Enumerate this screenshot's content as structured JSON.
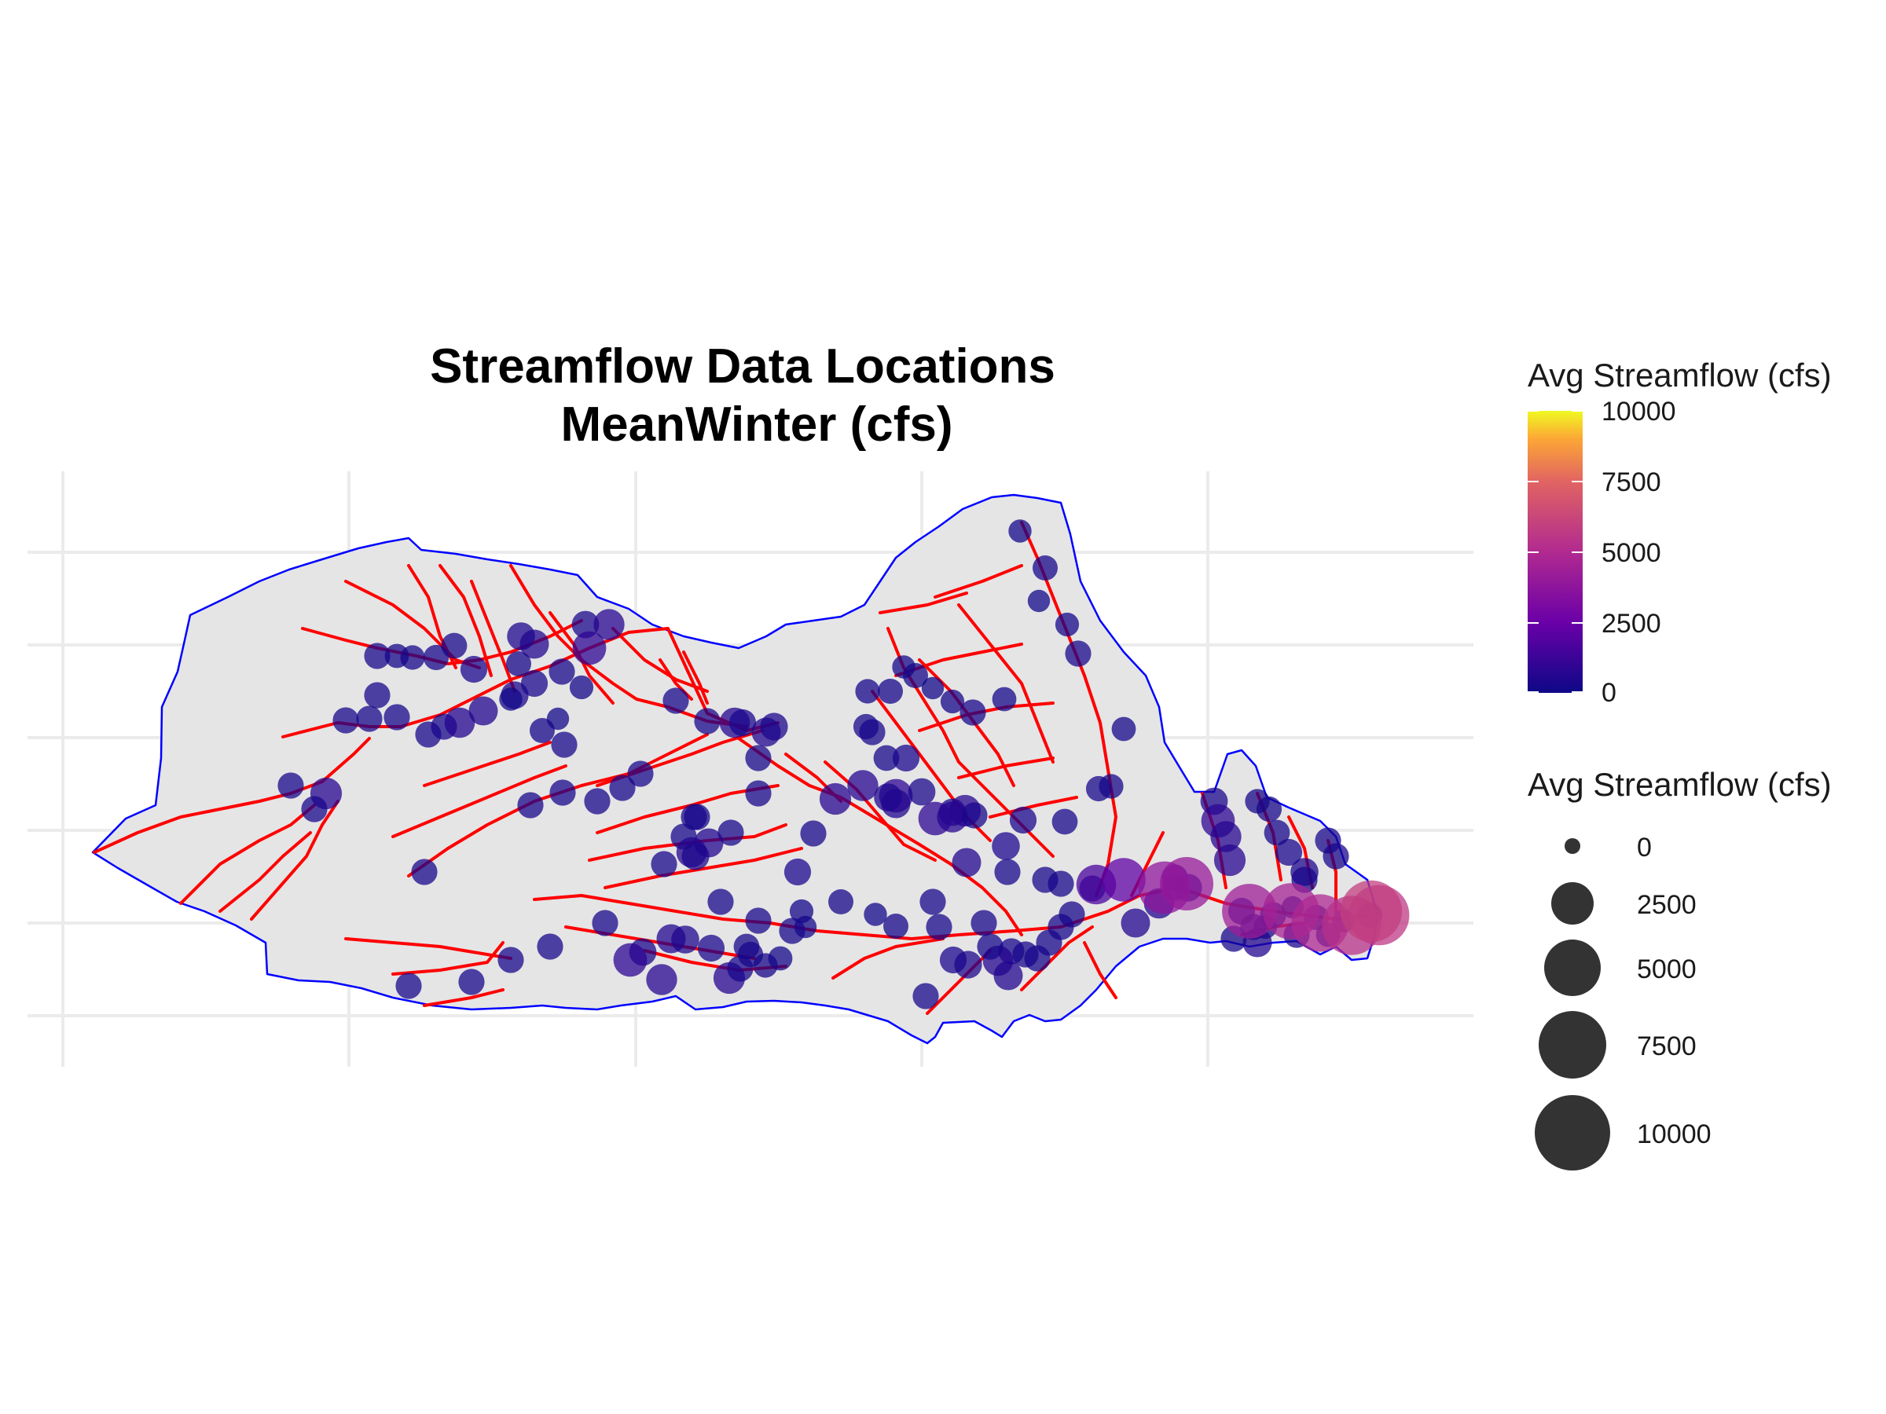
{
  "title": {
    "line1": "Streamflow Data Locations",
    "line2": "MeanWinter (cfs)"
  },
  "colors": {
    "watershed_fill": "#e5e5e5",
    "watershed_outline": "#0000ff",
    "streams": "#ff0000",
    "grid": "#ebebeb",
    "scale": [
      "#0d0887",
      "#6a00a8",
      "#b12a90",
      "#e16462",
      "#fca636",
      "#f0f921"
    ]
  },
  "legend": {
    "color_title": "Avg Streamflow (cfs)",
    "color_ticks": [
      "10000",
      "7500",
      "5000",
      "2500",
      "0"
    ],
    "size_title": "Avg Streamflow (cfs)",
    "size_labels": [
      "0",
      "2500",
      "5000",
      "7500",
      "10000"
    ]
  },
  "chart_data": {
    "type": "scatter",
    "title": "Streamflow Data Locations MeanWinter (cfs)",
    "value_name": "Avg Streamflow (cfs)",
    "value_range": [
      0,
      10000
    ],
    "grid": true,
    "legend_position": "right",
    "points": [
      {
        "v": 150
      },
      {
        "v": 250
      },
      {
        "v": 120
      },
      {
        "v": 180
      },
      {
        "v": 300
      },
      {
        "v": 200
      },
      {
        "v": 220
      },
      {
        "v": 260
      },
      {
        "v": 280
      },
      {
        "v": 350
      },
      {
        "v": 420
      },
      {
        "v": 500
      },
      {
        "v": 380
      },
      {
        "v": 900
      },
      {
        "v": 650
      },
      {
        "v": 700
      },
      {
        "v": 1600
      },
      {
        "v": 2200
      },
      {
        "v": 3800
      },
      {
        "v": 4000
      },
      {
        "v": 4300
      },
      {
        "v": 4600
      },
      {
        "v": 4900
      },
      {
        "v": 5300
      },
      {
        "v": 5600
      },
      {
        "v": 5900
      },
      {
        "v": 6200
      },
      {
        "v": 600
      },
      {
        "v": 500
      },
      {
        "v": 400
      },
      {
        "v": 350
      },
      {
        "v": 300
      },
      {
        "v": 250
      }
    ]
  }
}
